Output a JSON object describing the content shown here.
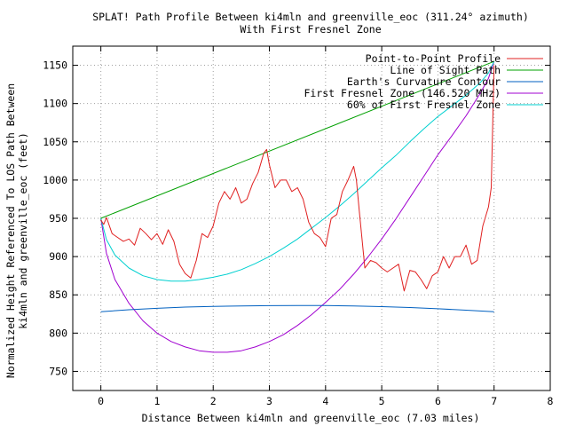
{
  "chart_data": {
    "type": "line",
    "title": "SPLAT! Path Profile Between ki4mln and greenville_eoc (311.24° azimuth)",
    "subtitle": "With First Fresnel Zone",
    "xlabel": "Distance Between ki4mln and greenville_eoc (7.03 miles)",
    "ylabel_line1": "Normalized Height Referenced To LOS Path Between",
    "ylabel_line2": "ki4mln and greenville_eoc (feet)",
    "xlim": [
      -0.5,
      8
    ],
    "ylim": [
      725,
      1175
    ],
    "xticks": [
      0,
      1,
      2,
      3,
      4,
      5,
      6,
      7,
      8
    ],
    "yticks": [
      750,
      800,
      850,
      900,
      950,
      1000,
      1050,
      1100,
      1150
    ],
    "grid": true,
    "legend_position": "top-right",
    "series": [
      {
        "name": "Point-to-Point Profile",
        "color": "#e02020",
        "x": [
          0,
          0.05,
          0.1,
          0.2,
          0.3,
          0.4,
          0.5,
          0.6,
          0.7,
          0.8,
          0.9,
          1.0,
          1.1,
          1.2,
          1.3,
          1.4,
          1.5,
          1.6,
          1.7,
          1.8,
          1.9,
          2.0,
          2.1,
          2.2,
          2.3,
          2.4,
          2.5,
          2.6,
          2.7,
          2.8,
          2.9,
          2.95,
          3.0,
          3.1,
          3.2,
          3.3,
          3.4,
          3.5,
          3.6,
          3.7,
          3.8,
          3.9,
          4.0,
          4.1,
          4.2,
          4.3,
          4.4,
          4.5,
          4.55,
          4.6,
          4.7,
          4.8,
          4.9,
          5.0,
          5.1,
          5.2,
          5.3,
          5.4,
          5.5,
          5.6,
          5.7,
          5.8,
          5.9,
          6.0,
          6.1,
          6.2,
          6.3,
          6.4,
          6.5,
          6.6,
          6.7,
          6.8,
          6.9,
          6.95,
          7.0
        ],
        "values": [
          948,
          942,
          951,
          930,
          925,
          920,
          923,
          915,
          937,
          930,
          922,
          930,
          916,
          935,
          920,
          890,
          878,
          872,
          895,
          930,
          925,
          940,
          970,
          985,
          975,
          990,
          970,
          975,
          995,
          1010,
          1035,
          1040,
          1020,
          990,
          1000,
          1000,
          985,
          990,
          975,
          945,
          930,
          925,
          913,
          950,
          955,
          985,
          1000,
          1018,
          1000,
          960,
          885,
          895,
          892,
          885,
          880,
          885,
          890,
          855,
          882,
          880,
          870,
          858,
          875,
          880,
          900,
          885,
          900,
          900,
          915,
          890,
          895,
          940,
          965,
          990,
          1150
        ]
      },
      {
        "name": "Line of Sight Path",
        "color": "#00a000",
        "x": [
          0,
          7.0
        ],
        "values": [
          950,
          1155
        ]
      },
      {
        "name": "Earth's Curvature Contour",
        "color": "#0060c0",
        "x": [
          0,
          0.5,
          1,
          1.5,
          2,
          2.5,
          3,
          3.5,
          4,
          4.5,
          5,
          5.5,
          6,
          6.5,
          7.0
        ],
        "values": [
          828,
          830.5,
          832.4,
          834.0,
          834.9,
          835.5,
          835.9,
          836.1,
          836.0,
          835.5,
          834.6,
          833.4,
          831.8,
          830.0,
          828
        ]
      },
      {
        "name": "First Fresnel Zone (146.520 MHz)",
        "color": "#a000d0",
        "x": [
          0,
          0.1,
          0.25,
          0.5,
          0.75,
          1.0,
          1.25,
          1.5,
          1.75,
          2.0,
          2.25,
          2.5,
          2.75,
          3.0,
          3.25,
          3.5,
          3.75,
          4.0,
          4.25,
          4.5,
          4.75,
          5.0,
          5.25,
          5.5,
          5.75,
          6.0,
          6.25,
          6.5,
          6.75,
          6.9,
          7.0
        ],
        "values": [
          950,
          904,
          870,
          839,
          816,
          800,
          789,
          782,
          777,
          775,
          775,
          777,
          782,
          789,
          798,
          810,
          824,
          840,
          857,
          877,
          899,
          923,
          949,
          977,
          1005,
          1033,
          1058,
          1084,
          1113,
          1133,
          1155
        ]
      },
      {
        "name": "60% of First Fresnel Zone",
        "color": "#00d0d0",
        "x": [
          0,
          0.1,
          0.25,
          0.5,
          0.75,
          1.0,
          1.25,
          1.5,
          1.75,
          2.0,
          2.25,
          2.5,
          2.75,
          3.0,
          3.25,
          3.5,
          3.75,
          4.0,
          4.25,
          4.5,
          4.75,
          5.0,
          5.25,
          5.5,
          5.75,
          6.0,
          6.25,
          6.5,
          6.75,
          6.9,
          7.0
        ],
        "values": [
          950,
          922,
          902,
          885,
          875,
          870,
          868,
          868,
          870,
          873,
          877,
          883,
          891,
          900,
          911,
          923,
          937,
          951,
          966,
          982,
          999,
          1016,
          1032,
          1050,
          1067,
          1083,
          1097,
          1111,
          1127,
          1140,
          1155
        ]
      }
    ]
  }
}
